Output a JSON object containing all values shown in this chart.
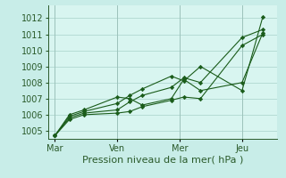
{
  "background_color": "#c8ede8",
  "plot_bg_color": "#d8f5f0",
  "grid_color": "#b0d8d0",
  "line_color": "#1a5c1a",
  "marker_color": "#1a5c1a",
  "xlabel": "Pression niveau de la mer( hPa )",
  "ylim": [
    1004.5,
    1012.8
  ],
  "yticks": [
    1005,
    1006,
    1007,
    1008,
    1009,
    1010,
    1011,
    1012
  ],
  "xtick_labels": [
    "Mar",
    "Ven",
    "Mer",
    "Jeu"
  ],
  "xtick_positions": [
    0,
    30,
    60,
    90
  ],
  "xlim": [
    -3,
    107
  ],
  "series": [
    {
      "x": [
        0,
        7,
        14,
        30,
        36,
        42,
        56,
        62,
        70,
        90,
        100
      ],
      "y": [
        1004.7,
        1005.7,
        1006.0,
        1006.1,
        1006.2,
        1006.5,
        1006.9,
        1007.1,
        1007.0,
        1010.3,
        1011.0
      ]
    },
    {
      "x": [
        0,
        7,
        14,
        30,
        36,
        42,
        56,
        62,
        70,
        90,
        100
      ],
      "y": [
        1004.7,
        1005.8,
        1006.1,
        1006.3,
        1006.8,
        1007.2,
        1007.7,
        1008.3,
        1008.0,
        1010.8,
        1011.3
      ]
    },
    {
      "x": [
        0,
        7,
        14,
        30,
        36,
        42,
        56,
        62,
        70,
        90,
        100
      ],
      "y": [
        1004.7,
        1005.9,
        1006.2,
        1006.7,
        1007.2,
        1007.6,
        1008.4,
        1008.1,
        1009.0,
        1007.5,
        1012.1
      ]
    },
    {
      "x": [
        0,
        7,
        14,
        30,
        36,
        42,
        56,
        62,
        70,
        90,
        100
      ],
      "y": [
        1004.7,
        1006.0,
        1006.3,
        1007.1,
        1007.0,
        1006.6,
        1007.0,
        1008.2,
        1007.5,
        1008.0,
        1011.1
      ]
    }
  ],
  "xlabel_fontsize": 8,
  "tick_fontsize": 7
}
